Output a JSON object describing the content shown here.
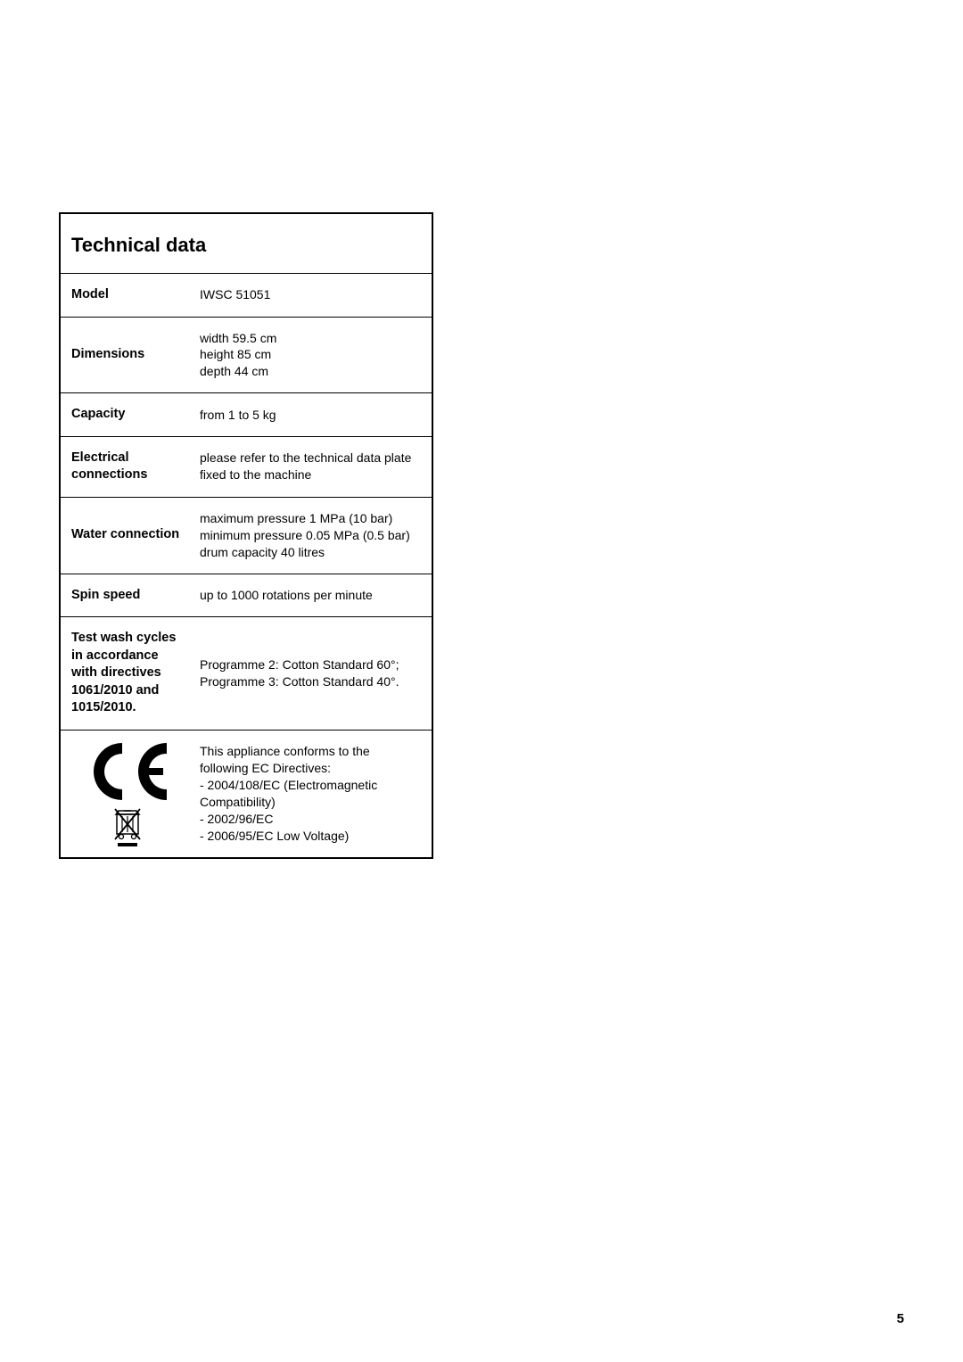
{
  "table": {
    "title": "Technical data",
    "rows": [
      {
        "label": "Model",
        "value": "IWSC 51051"
      },
      {
        "label": "Dimensions",
        "value": "width 59.5 cm\nheight 85 cm\ndepth 44 cm"
      },
      {
        "label": "Capacity",
        "value": "from 1 to 5 kg"
      },
      {
        "label": "Electrical connections",
        "value": "please refer to the technical data plate fixed to the machine"
      },
      {
        "label": "Water connection",
        "value": "maximum pressure 1 MPa (10 bar)\nminimum pressure 0.05 MPa (0.5 bar)\ndrum capacity 40 litres"
      },
      {
        "label": "Spin speed",
        "value": "up to 1000 rotations per minute"
      },
      {
        "label": "Test wash cycles in accordance with directives 1061/2010 and 1015/2010.",
        "value": "Programme 2: Cotton Standard 60°;\nProgramme 3: Cotton Standard 40°."
      }
    ],
    "compliance": {
      "text": "This appliance conforms to the following EC Directives:\n- 2004/108/EC (Electromagnetic Compatibility)\n- 2002/96/EC\n- 2006/95/EC Low Voltage)"
    }
  },
  "page_number": "5",
  "colors": {
    "border": "#000000",
    "bg": "#ffffff",
    "text": "#000000"
  }
}
